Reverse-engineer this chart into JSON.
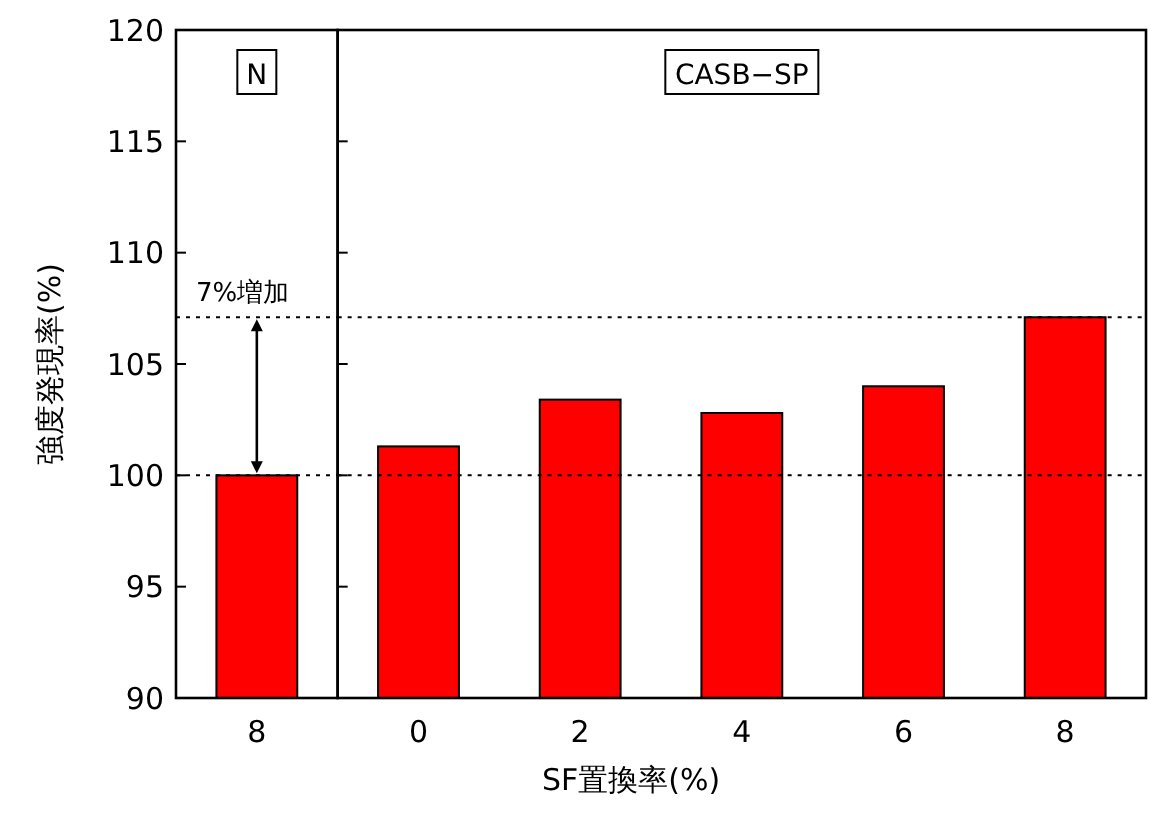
{
  "chart_data": [
    {
      "type": "bar",
      "ylabel": "強度発現率(%)",
      "categories": [
        "8"
      ],
      "values": [
        100
      ],
      "color": "#ff0000",
      "ylim": [
        90,
        120
      ],
      "yticks": [
        90,
        95,
        100,
        105,
        110,
        115,
        120
      ],
      "ref_lines": [
        {
          "axis": "y",
          "value": 100,
          "line_style": "dotted"
        },
        {
          "axis": "y",
          "value": 107.1,
          "line_style": "dotted"
        }
      ],
      "annotations": [
        "N",
        {
          "text": "7%増加",
          "y": 107.1
        }
      ]
    },
    {
      "type": "bar",
      "xlabel": "SF置換率(%)",
      "categories": [
        "0",
        "2",
        "4",
        "6",
        "8"
      ],
      "values": [
        101.3,
        103.4,
        102.8,
        104.0,
        107.1
      ],
      "color": "#ff0000",
      "ylim": [
        90,
        120
      ],
      "yticks": [
        90,
        95,
        100,
        105,
        110,
        115,
        120
      ],
      "tick_labels": "x",
      "ref_lines": [
        {
          "axis": "y",
          "value": 100,
          "line_style": "dotted"
        },
        {
          "axis": "y",
          "value": 107.1,
          "line_style": "dotted"
        }
      ],
      "annotations": [
        "CASB−SP"
      ]
    }
  ]
}
